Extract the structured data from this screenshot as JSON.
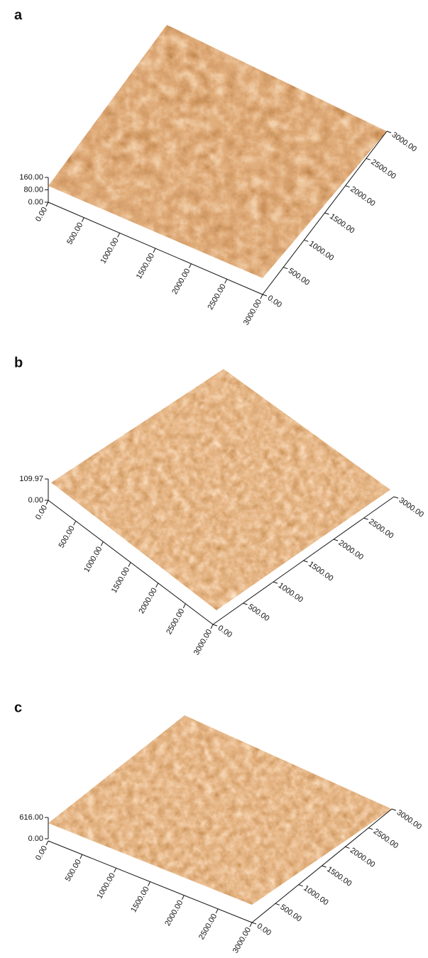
{
  "panels": [
    {
      "label": "a",
      "z_ticks": [
        "160.00",
        "80.00",
        "0.00"
      ],
      "x_ticks": [
        "0.00",
        "500.00",
        "1000.00",
        "1500.00",
        "2000.00",
        "2500.00",
        "3000.00"
      ],
      "y_ticks": [
        "0.00",
        "500.00",
        "1000.00",
        "1500.00",
        "2000.00",
        "2500.00",
        "3000.00"
      ]
    },
    {
      "label": "b",
      "z_ticks": [
        "109.97",
        "0.00"
      ],
      "x_ticks": [
        "0.00",
        "500.00",
        "1000.00",
        "1500.00",
        "2000.00",
        "2500.00",
        "3000.00"
      ],
      "y_ticks": [
        "0.00",
        "500.00",
        "1000.00",
        "1500.00",
        "2000.00",
        "2500.00",
        "3000.00"
      ]
    },
    {
      "label": "c",
      "z_ticks": [
        "616.00",
        "0.00"
      ],
      "x_ticks": [
        "0.00",
        "500.00",
        "1000.00",
        "1500.00",
        "2000.00",
        "2500.00",
        "3000.00"
      ],
      "y_ticks": [
        "0.00",
        "500.00",
        "1000.00",
        "1500.00",
        "2000.00",
        "2500.00",
        "3000.00"
      ]
    }
  ]
}
